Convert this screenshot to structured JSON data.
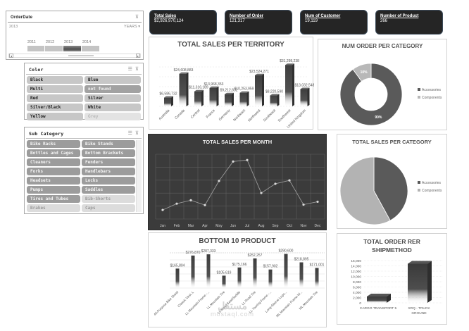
{
  "slicers": {
    "order_date": {
      "title": "OrderDate",
      "selected_label": "2013",
      "period_dropdown": "YEARS",
      "years": [
        "2011",
        "2012",
        "2013",
        "2014"
      ],
      "selected_year": "2013"
    },
    "color": {
      "title": "Color",
      "items": [
        {
          "label": "Black",
          "state": "selected"
        },
        {
          "label": "Blue",
          "state": "selected"
        },
        {
          "label": "Multi",
          "state": "selected"
        },
        {
          "label": "not found",
          "state": "selected-dark"
        },
        {
          "label": "Red",
          "state": "selected"
        },
        {
          "label": "Silver",
          "state": "selected"
        },
        {
          "label": "Silver/Black",
          "state": "selected"
        },
        {
          "label": "White",
          "state": "selected"
        },
        {
          "label": "Yellow",
          "state": "selected"
        },
        {
          "label": "Grey",
          "state": "no-data"
        }
      ]
    },
    "sub_category": {
      "title": "Sub Category",
      "items": [
        {
          "label": "Bike Racks",
          "state": "selected"
        },
        {
          "label": "Bike Stands",
          "state": "selected"
        },
        {
          "label": "Bottles and Cages",
          "state": "selected"
        },
        {
          "label": "Bottom Brackets",
          "state": "selected"
        },
        {
          "label": "Cleaners",
          "state": "selected"
        },
        {
          "label": "Fenders",
          "state": "selected"
        },
        {
          "label": "Forks",
          "state": "selected"
        },
        {
          "label": "Handlebars",
          "state": "selected"
        },
        {
          "label": "Headsets",
          "state": "selected"
        },
        {
          "label": "Locks",
          "state": "selected"
        },
        {
          "label": "Pumps",
          "state": "selected"
        },
        {
          "label": "Saddles",
          "state": "selected"
        },
        {
          "label": "Tires and Tubes",
          "state": "selected"
        },
        {
          "label": "Bib-Shorts",
          "state": "no-data"
        },
        {
          "label": "Brakes",
          "state": "no-data"
        },
        {
          "label": "Caps",
          "state": "no-data"
        }
      ]
    }
  },
  "kpis": [
    {
      "label": "Total Sales",
      "value": "$2,926,970,124"
    },
    {
      "label": "Number of Order",
      "value": "121,317"
    },
    {
      "label": "Num of Customer",
      "value": "19,119"
    },
    {
      "label": "Number of Product",
      "value": "266"
    }
  ],
  "colors": {
    "dark_bar": "#4a4a4a",
    "light_slice": "#b3b3b3",
    "dark_slice": "#5a5a5a",
    "dark_panel": "#3a3a3a",
    "kpi_bg": "#252525"
  },
  "watermark": {
    "arabic": "مستقل",
    "latin": "mostaql.com"
  },
  "chart_data": [
    {
      "id": "territory",
      "type": "bar",
      "title": "TOTAL SALES PER TERRITORY",
      "categories": [
        "Australia",
        "Canada",
        "Central",
        "France",
        "Germany",
        "Northeast",
        "Northwest",
        "Southeast",
        "Southwest",
        "United Kingdom"
      ],
      "values": [
        6586732,
        24608883,
        11316189,
        13968353,
        9212832,
        10253959,
        23524271,
        8220590,
        31298238,
        13032548
      ],
      "labels": [
        "$6,586,732",
        "$24,608,883",
        "$11,316,189",
        "$13,968,353",
        "$9,212,832",
        "$10,253,959",
        "$23,524,271",
        "$8,220,590",
        "$31,298,238",
        "$13,032,548"
      ],
      "xlabel": "",
      "ylabel": "",
      "grid": true,
      "legend": "none"
    },
    {
      "id": "order_category",
      "type": "pie",
      "variant": "doughnut",
      "title": "NUM ORDER PER CATEGORY",
      "categories": [
        "Accessories",
        "Components"
      ],
      "values": [
        90,
        10
      ],
      "labels": [
        "90%",
        "10%"
      ],
      "legend": "right"
    },
    {
      "id": "sales_month",
      "type": "line",
      "title": "TOTAL SALES PER MONTH",
      "categories": [
        "Jan",
        "Feb",
        "Mar",
        "Apr",
        "May",
        "Jun",
        "Jul",
        "Aug",
        "Sep",
        "Oct",
        "Nov",
        "Dec"
      ],
      "values": [
        10,
        23,
        30,
        20,
        70,
        110,
        113,
        45,
        64,
        71,
        21,
        27
      ],
      "value_scale": "relative (no axis labels shown)",
      "grid": true,
      "legend": "none"
    },
    {
      "id": "sales_category",
      "type": "pie",
      "title": "TOTAL SALES PER CATEGORY",
      "categories": [
        "Accessories",
        "Components"
      ],
      "values": [
        42,
        58
      ],
      "legend": "right"
    },
    {
      "id": "bottom_products",
      "type": "bar",
      "title": "BOTTOM 10 PRODUCT",
      "categories": [
        "All-Purpose Bike Stand",
        "Classic Vest, L",
        "LL Mountain Frame -...",
        "LL Mountain Tire",
        "LL Road Seat/Saddle",
        "LL Road Tire",
        "LL Touring Frame -...",
        "Long-Sleeve Logo...",
        "ML Mountain Frame-W...",
        "ML Mountain Tire"
      ],
      "values": [
        165804,
        276870,
        287333,
        105619,
        175166,
        252257,
        157902,
        290600,
        218895,
        171001
      ],
      "labels": [
        "$165,804",
        "$276,870",
        "$287,333",
        "$105,619",
        "$175,166",
        "$252,257",
        "$157,902",
        "$290,600",
        "$218,895",
        "$171,001"
      ],
      "grid": true,
      "legend": "none"
    },
    {
      "id": "ship_method",
      "type": "bar",
      "title": "TOTAL ORDER RER SHIPMETHOD",
      "title_lines": [
        "TOTAL ORDER RER",
        "SHIPMETHOD"
      ],
      "categories": [
        "CARGO TRANSPORT 5",
        "XRQ - TRUCK GROUND"
      ],
      "category_lines": [
        [
          "CARGO TRANSPORT 5"
        ],
        [
          "XRQ - TRUCK",
          "GROUND"
        ]
      ],
      "values": [
        2400,
        14800
      ],
      "yticks": [
        "16,000",
        "14,000",
        "12,000",
        "10,000",
        "8,000",
        "6,000",
        "4,000",
        "2,000",
        "0"
      ],
      "ylim": [
        0,
        16000
      ],
      "grid": true,
      "legend": "none"
    }
  ]
}
